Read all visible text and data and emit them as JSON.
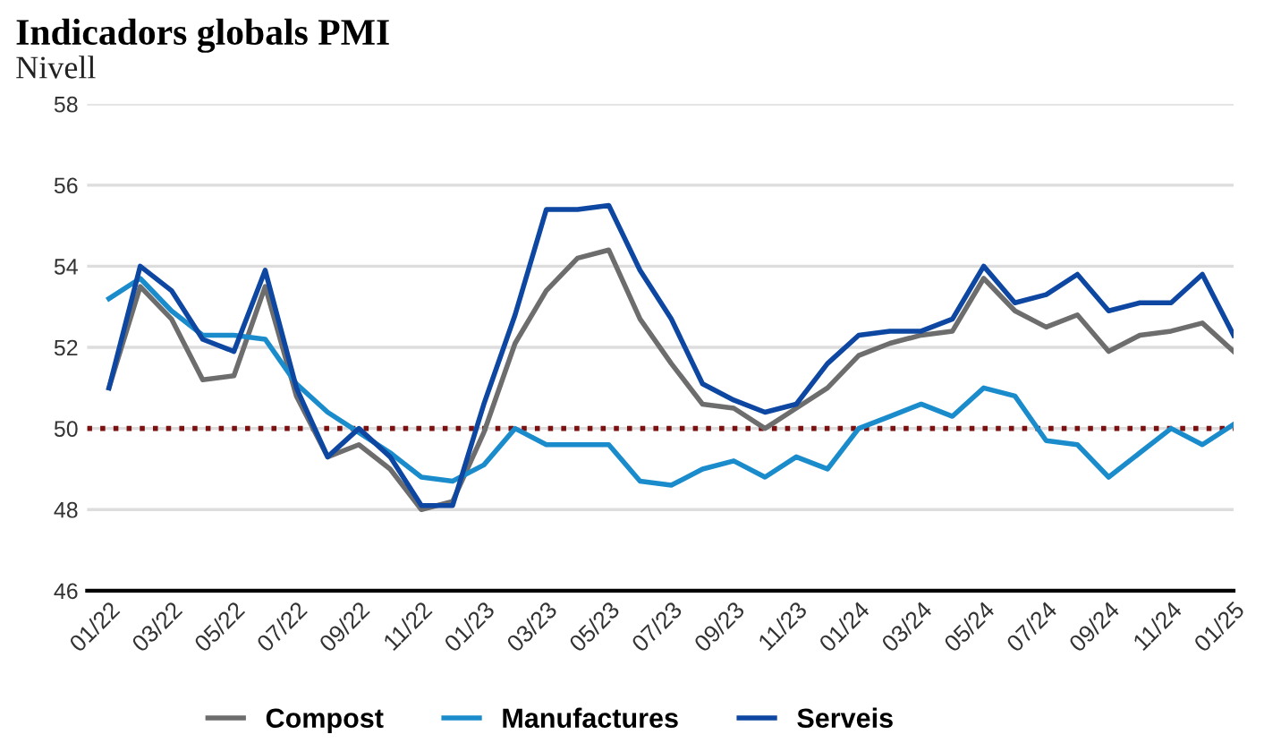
{
  "chart_data": {
    "type": "line",
    "title": "Indicadors globals PMI",
    "subtitle": "Nivell",
    "categories": [
      "01/22",
      null,
      "03/22",
      null,
      "05/22",
      null,
      "07/22",
      null,
      "09/22",
      null,
      "11/22",
      null,
      "01/23",
      null,
      "03/23",
      null,
      "05/23",
      null,
      "07/23",
      null,
      "09/23",
      null,
      "11/23",
      null,
      "01/24",
      null,
      "03/24",
      null,
      "05/24",
      null,
      "07/24",
      null,
      "09/24",
      null,
      "11/24",
      null,
      "01/25"
    ],
    "series": [
      {
        "name": "Compost",
        "color": "#6d6d6d",
        "values": [
          51.0,
          53.5,
          52.7,
          51.2,
          51.3,
          53.5,
          50.8,
          49.3,
          49.6,
          49.0,
          48.0,
          48.2,
          49.9,
          52.1,
          53.4,
          54.2,
          54.4,
          52.7,
          51.6,
          50.6,
          50.5,
          50.0,
          50.5,
          51.0,
          51.8,
          52.1,
          52.3,
          52.4,
          53.7,
          52.9,
          52.5,
          52.8,
          51.9,
          52.3,
          52.4,
          52.6,
          51.9
        ]
      },
      {
        "name": "Manufactures",
        "color": "#1a8ccc",
        "values": [
          53.2,
          53.7,
          52.9,
          52.3,
          52.3,
          52.2,
          51.1,
          50.4,
          49.9,
          49.4,
          48.8,
          48.7,
          49.1,
          50.0,
          49.6,
          49.6,
          49.6,
          48.7,
          48.6,
          49.0,
          49.2,
          48.8,
          49.3,
          49.0,
          50.0,
          50.3,
          50.6,
          50.3,
          51.0,
          50.8,
          49.7,
          49.6,
          48.8,
          49.4,
          50.0,
          49.6,
          50.1
        ]
      },
      {
        "name": "Serveis",
        "color": "#0d47a1",
        "values": [
          51.0,
          54.0,
          53.4,
          52.2,
          51.9,
          53.9,
          51.0,
          49.3,
          50.0,
          49.3,
          48.1,
          48.1,
          50.6,
          52.8,
          55.4,
          55.4,
          55.5,
          53.9,
          52.7,
          51.1,
          50.7,
          50.4,
          50.6,
          51.6,
          52.3,
          52.4,
          52.4,
          52.7,
          54.0,
          53.1,
          53.3,
          53.8,
          52.9,
          53.1,
          53.1,
          53.8,
          52.3
        ]
      }
    ],
    "ylim": [
      46,
      58
    ],
    "yticks": [
      46,
      48,
      50,
      52,
      54,
      56,
      58
    ],
    "grid": "y",
    "legend": "bottom",
    "line_style": "solid",
    "marker": "none",
    "ref_lines": [
      {
        "axis": "y",
        "value": 50,
        "color": "#7b1010",
        "line_style": "dotted"
      }
    ]
  }
}
